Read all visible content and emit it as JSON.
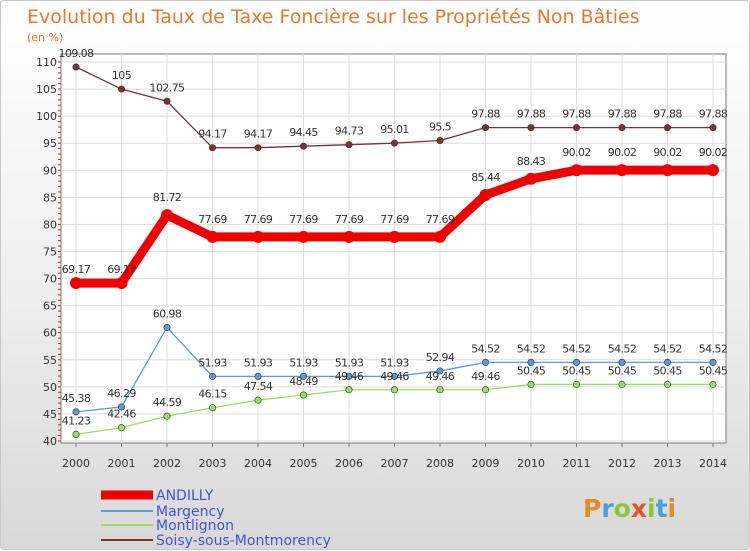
{
  "chart_data": {
    "type": "line",
    "title": "Evolution du Taux de Taxe Foncière sur les Propriétés Non Bâties",
    "unit_label": "(en %)",
    "x": [
      "2000",
      "2001",
      "2002",
      "2003",
      "2004",
      "2005",
      "2006",
      "2007",
      "2008",
      "2009",
      "2010",
      "2011",
      "2012",
      "2013",
      "2014"
    ],
    "ylim": [
      40,
      110
    ],
    "yticks": [
      40,
      45,
      50,
      55,
      60,
      65,
      70,
      75,
      80,
      85,
      90,
      95,
      100,
      105,
      110
    ],
    "grid": true,
    "legend_position": "bottom-left",
    "series": [
      {
        "name": "ANDILLY",
        "color": "#ee0000",
        "values": [
          69.17,
          69.17,
          81.72,
          77.69,
          77.69,
          77.69,
          77.69,
          77.69,
          77.69,
          85.44,
          88.43,
          90.02,
          90.02,
          90.02,
          90.02
        ],
        "labels": [
          "69.17",
          "69.17",
          "81.72",
          "77.69",
          "77.69",
          "77.69",
          "77.69",
          "77.69",
          "77.69",
          "85.44",
          "88.43",
          "90.02",
          "90.02",
          "90.02",
          "90.02"
        ]
      },
      {
        "name": "Margency",
        "color": "#5b9bd5",
        "values": [
          45.38,
          46.29,
          60.98,
          51.93,
          51.93,
          51.93,
          51.93,
          51.93,
          52.94,
          54.52,
          54.52,
          54.52,
          54.52,
          54.52,
          54.52
        ],
        "labels": [
          "45.38",
          "46.29",
          "60.98",
          "51.93",
          "51.93",
          "51.93",
          "51.93",
          "51.93",
          "52.94",
          "54.52",
          "54.52",
          "54.52",
          "54.52",
          "54.52",
          "54.52"
        ]
      },
      {
        "name": "Montlignon",
        "color": "#99dd66",
        "values": [
          41.23,
          42.46,
          44.59,
          46.15,
          47.54,
          48.49,
          49.46,
          49.46,
          49.46,
          49.46,
          50.45,
          50.45,
          50.45,
          50.45,
          50.45
        ],
        "labels": [
          "41.23",
          "42.46",
          "44.59",
          "46.15",
          "47.54",
          "48.49",
          "49.46",
          "49.46",
          "49.46",
          "49.46",
          "50.45",
          "50.45",
          "50.45",
          "50.45",
          "50.45"
        ]
      },
      {
        "name": "Soisy-sous-Montmorency",
        "color": "#7a3333",
        "values": [
          109.08,
          105,
          102.75,
          94.17,
          94.17,
          94.45,
          94.73,
          95.01,
          95.5,
          97.88,
          97.88,
          97.88,
          97.88,
          97.88,
          97.88
        ],
        "labels": [
          "109.08",
          "105",
          "102.75",
          "94.17",
          "94.17",
          "94.45",
          "94.73",
          "95.01",
          "95.5",
          "97.88",
          "97.88",
          "97.88",
          "97.88",
          "97.88",
          "97.88"
        ]
      }
    ]
  },
  "logo": {
    "letters": [
      "P",
      "r",
      "o",
      "x",
      "i",
      "t",
      "i"
    ],
    "colors": [
      "#e58a2a",
      "#4a9fd8",
      "#8cc63f",
      "#e2542e",
      "#8cc63f",
      "#4a9fd8",
      "#e58a2a"
    ]
  }
}
